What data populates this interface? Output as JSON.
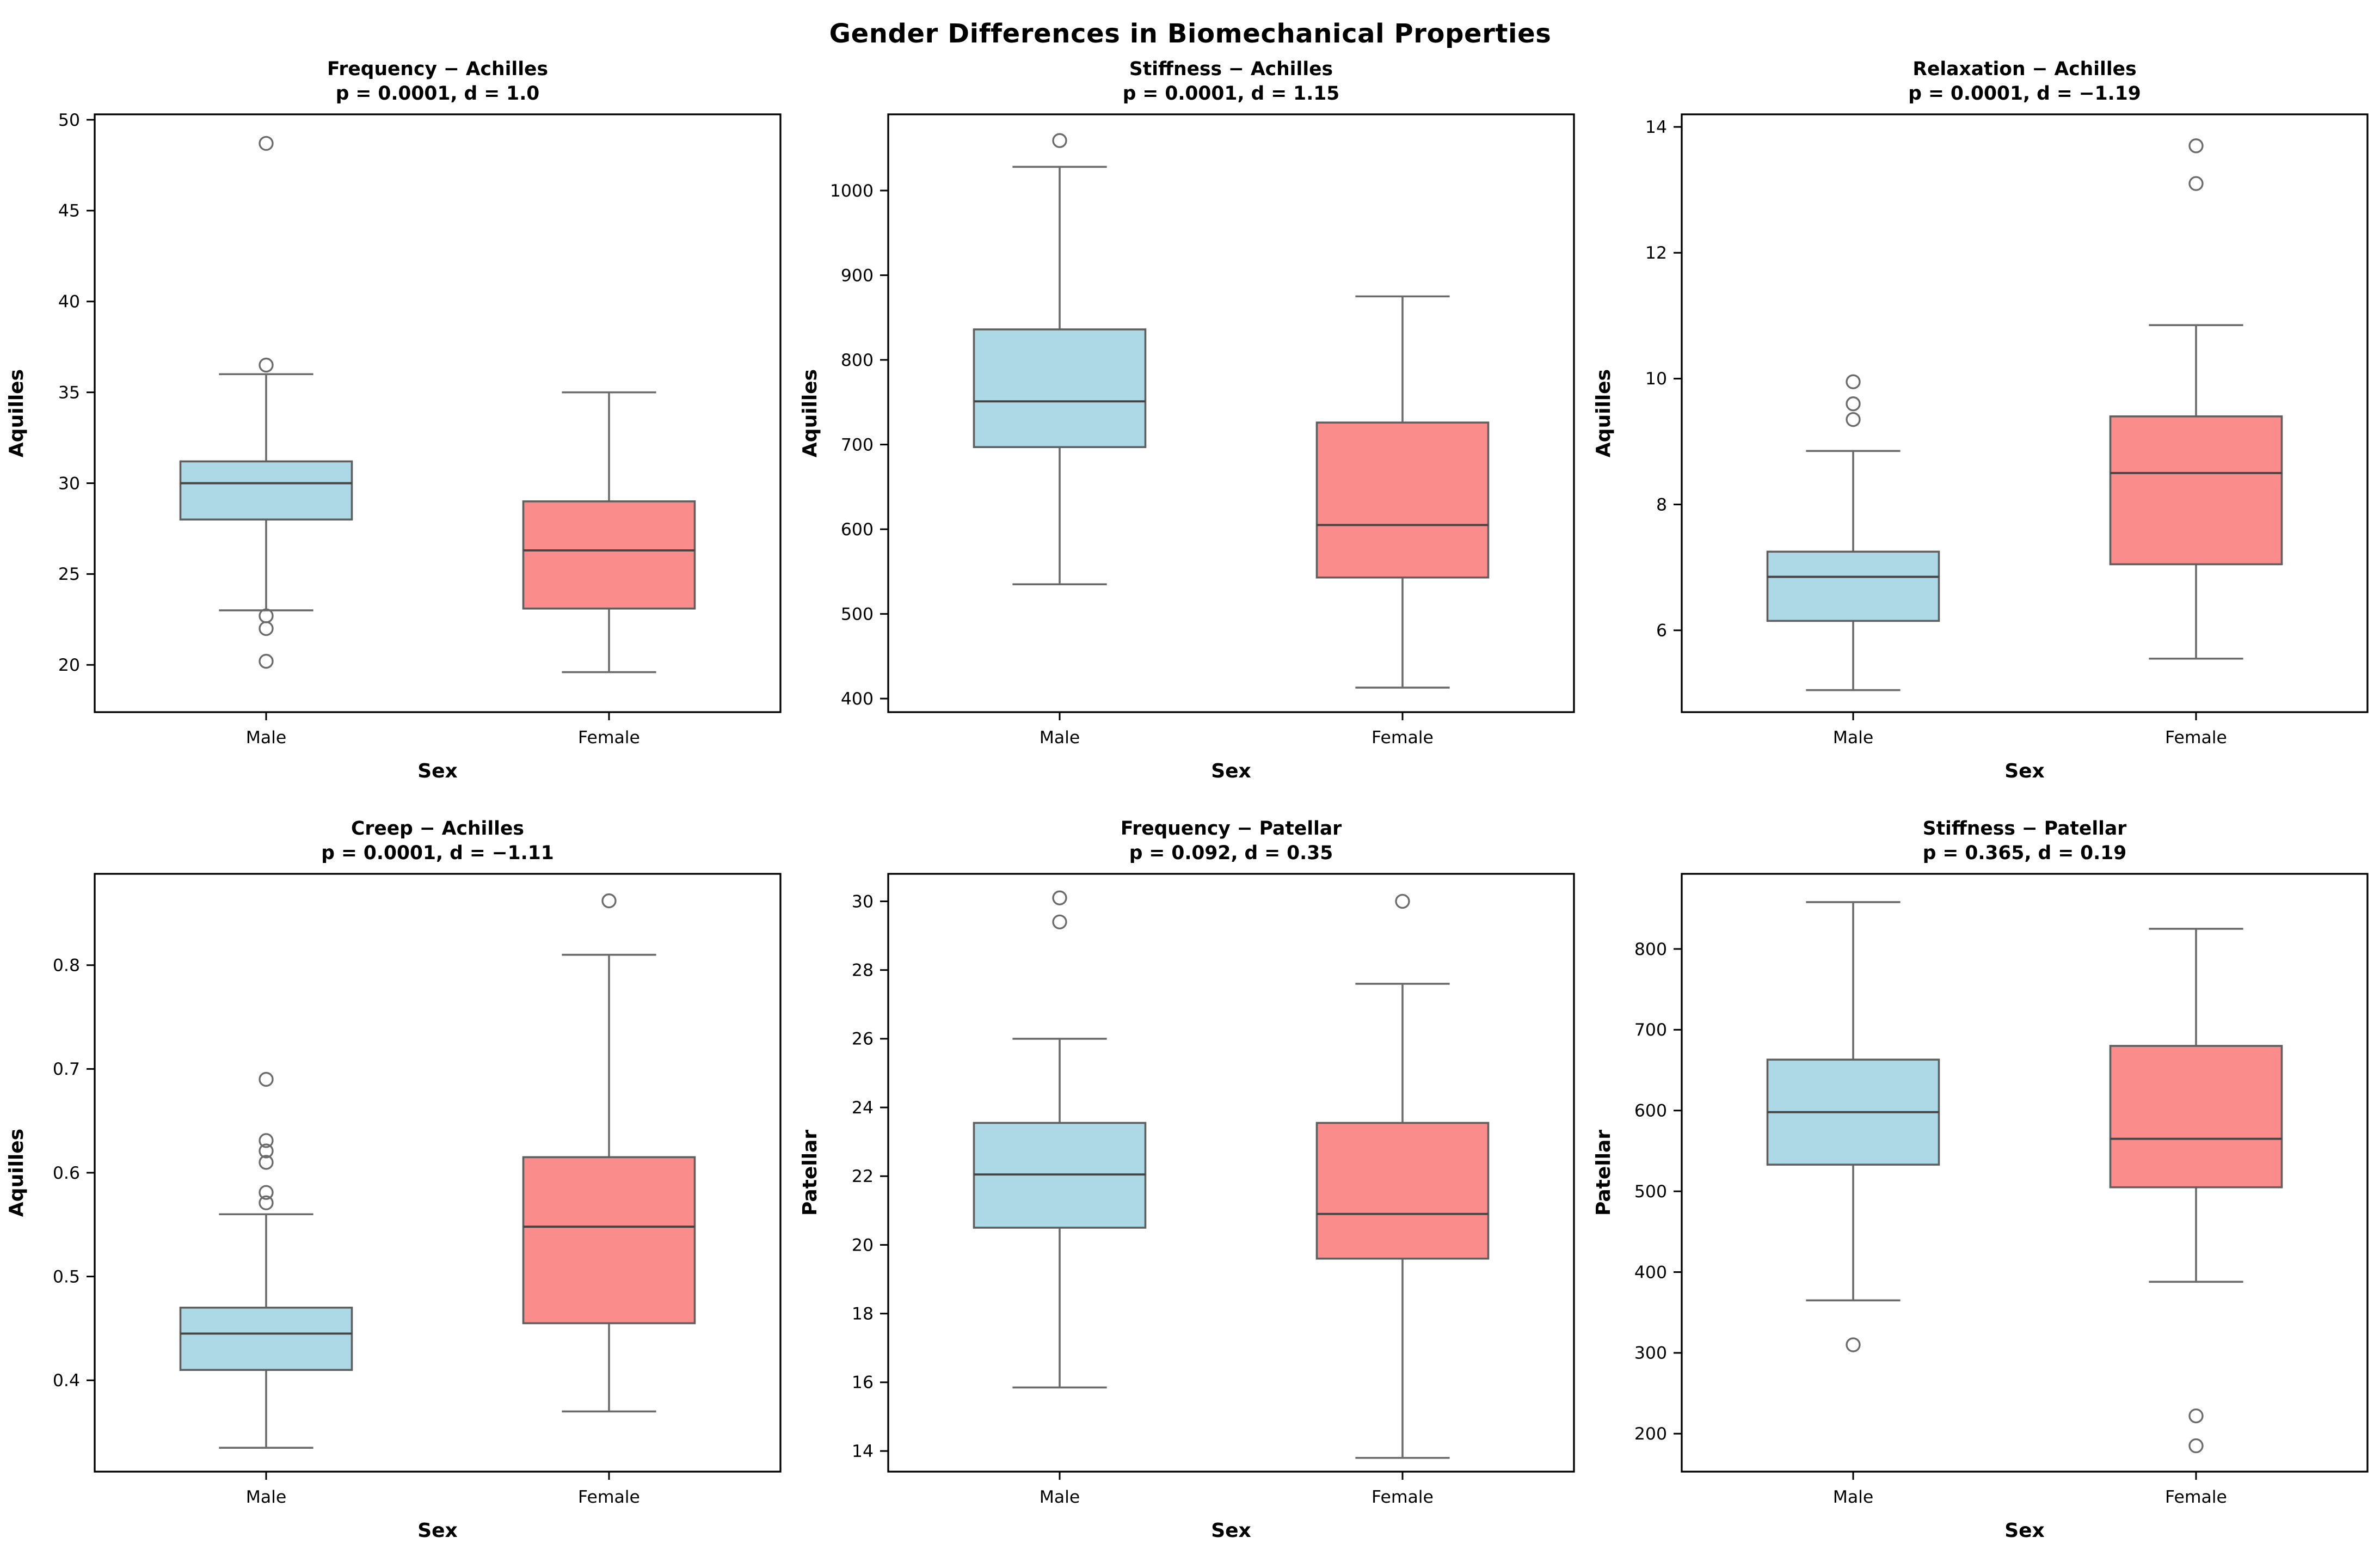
{
  "figure_title": "Gender Differences in Biomechanical Properties",
  "colors": {
    "male_fill": "#ADD8E6",
    "female_fill": "#FA8C8C",
    "box_edge": "#5F5F5F",
    "median": "#444444",
    "whisker": "#6B6B6B",
    "outlier_edge": "#6B6B6B",
    "frame": "#000000"
  },
  "x_axis": {
    "label": "Sex",
    "categories": [
      "Male",
      "Female"
    ]
  },
  "chart_data": [
    {
      "type": "box",
      "id": "frequency-achilles",
      "title": "Frequency − Achilles",
      "subtitle": "p = 0.0001, d = 1.0",
      "ylabel": "Aquilles",
      "xlabel": "Sex",
      "categories": [
        "Male",
        "Female"
      ],
      "ylim": [
        17.4,
        50.3
      ],
      "ytick_values": [
        20,
        25,
        30,
        35,
        40,
        45,
        50
      ],
      "ytick_labels": [
        "20",
        "25",
        "30",
        "35",
        "40",
        "45",
        "50"
      ],
      "series": [
        {
          "name": "Male",
          "color_key": "male_fill",
          "whisker_low": 23.0,
          "q1": 28.0,
          "median": 30.0,
          "q3": 31.2,
          "whisker_high": 36.0,
          "outliers": [
            48.7,
            36.5,
            22.7,
            22.0,
            20.2
          ]
        },
        {
          "name": "Female",
          "color_key": "female_fill",
          "whisker_low": 19.6,
          "q1": 23.1,
          "median": 26.3,
          "q3": 29.0,
          "whisker_high": 35.0,
          "outliers": []
        }
      ]
    },
    {
      "type": "box",
      "id": "stiffness-achilles",
      "title": "Stiffness − Achilles",
      "subtitle": "p = 0.0001, d = 1.15",
      "ylabel": "Aquilles",
      "xlabel": "Sex",
      "categories": [
        "Male",
        "Female"
      ],
      "ylim": [
        384,
        1090
      ],
      "ytick_values": [
        400,
        500,
        600,
        700,
        800,
        900,
        1000
      ],
      "ytick_labels": [
        "400",
        "500",
        "600",
        "700",
        "800",
        "900",
        "1000"
      ],
      "series": [
        {
          "name": "Male",
          "color_key": "male_fill",
          "whisker_low": 535,
          "q1": 697,
          "median": 751,
          "q3": 836,
          "whisker_high": 1028,
          "outliers": [
            1059
          ]
        },
        {
          "name": "Female",
          "color_key": "female_fill",
          "whisker_low": 413,
          "q1": 543,
          "median": 605,
          "q3": 726,
          "whisker_high": 875,
          "outliers": []
        }
      ]
    },
    {
      "type": "box",
      "id": "relaxation-achilles",
      "title": "Relaxation − Achilles",
      "subtitle": "p = 0.0001, d = −1.19",
      "ylabel": "Aquilles",
      "xlabel": "Sex",
      "categories": [
        "Male",
        "Female"
      ],
      "ylim": [
        4.7,
        14.2
      ],
      "ytick_values": [
        6,
        8,
        10,
        12,
        14
      ],
      "ytick_labels": [
        "6",
        "8",
        "10",
        "12",
        "14"
      ],
      "series": [
        {
          "name": "Male",
          "color_key": "male_fill",
          "whisker_low": 5.05,
          "q1": 6.15,
          "median": 6.85,
          "q3": 7.25,
          "whisker_high": 8.85,
          "outliers": [
            9.95,
            9.6,
            9.35
          ]
        },
        {
          "name": "Female",
          "color_key": "female_fill",
          "whisker_low": 5.55,
          "q1": 7.05,
          "median": 8.5,
          "q3": 9.4,
          "whisker_high": 10.85,
          "outliers": [
            13.7,
            13.1
          ]
        }
      ]
    },
    {
      "type": "box",
      "id": "creep-achilles",
      "title": "Creep − Achilles",
      "subtitle": "p = 0.0001, d = −1.11",
      "ylabel": "Aquilles",
      "xlabel": "Sex",
      "categories": [
        "Male",
        "Female"
      ],
      "ylim": [
        0.312,
        0.888
      ],
      "ytick_values": [
        0.4,
        0.5,
        0.6,
        0.7,
        0.8
      ],
      "ytick_labels": [
        "0.4",
        "0.5",
        "0.6",
        "0.7",
        "0.8"
      ],
      "series": [
        {
          "name": "Male",
          "color_key": "male_fill",
          "whisker_low": 0.335,
          "q1": 0.41,
          "median": 0.445,
          "q3": 0.47,
          "whisker_high": 0.56,
          "outliers": [
            0.69,
            0.631,
            0.621,
            0.61,
            0.581,
            0.571
          ]
        },
        {
          "name": "Female",
          "color_key": "female_fill",
          "whisker_low": 0.37,
          "q1": 0.455,
          "median": 0.548,
          "q3": 0.615,
          "whisker_high": 0.81,
          "outliers": [
            0.862
          ]
        }
      ]
    },
    {
      "type": "box",
      "id": "frequency-patellar",
      "title": "Frequency − Patellar",
      "subtitle": "p = 0.092, d = 0.35",
      "ylabel": "Patellar",
      "xlabel": "Sex",
      "categories": [
        "Male",
        "Female"
      ],
      "ylim": [
        13.4,
        30.8
      ],
      "ytick_values": [
        14,
        16,
        18,
        20,
        22,
        24,
        26,
        28,
        30
      ],
      "ytick_labels": [
        "14",
        "16",
        "18",
        "20",
        "22",
        "24",
        "26",
        "28",
        "30"
      ],
      "series": [
        {
          "name": "Male",
          "color_key": "male_fill",
          "whisker_low": 15.85,
          "q1": 20.5,
          "median": 22.05,
          "q3": 23.55,
          "whisker_high": 26.0,
          "outliers": [
            30.1,
            29.4
          ]
        },
        {
          "name": "Female",
          "color_key": "female_fill",
          "whisker_low": 13.8,
          "q1": 19.6,
          "median": 20.9,
          "q3": 23.55,
          "whisker_high": 27.6,
          "outliers": [
            30.0
          ]
        }
      ]
    },
    {
      "type": "box",
      "id": "stiffness-patellar",
      "title": "Stiffness − Patellar",
      "subtitle": "p = 0.365, d = 0.19",
      "ylabel": "Patellar",
      "xlabel": "Sex",
      "categories": [
        "Male",
        "Female"
      ],
      "ylim": [
        153,
        893
      ],
      "ytick_values": [
        200,
        300,
        400,
        500,
        600,
        700,
        800
      ],
      "ytick_labels": [
        "200",
        "300",
        "400",
        "500",
        "600",
        "700",
        "800"
      ],
      "series": [
        {
          "name": "Male",
          "color_key": "male_fill",
          "whisker_low": 365,
          "q1": 533,
          "median": 598,
          "q3": 663,
          "whisker_high": 858,
          "outliers": [
            310
          ]
        },
        {
          "name": "Female",
          "color_key": "female_fill",
          "whisker_low": 388,
          "q1": 505,
          "median": 565,
          "q3": 680,
          "whisker_high": 825,
          "outliers": [
            222,
            185
          ]
        }
      ]
    }
  ]
}
